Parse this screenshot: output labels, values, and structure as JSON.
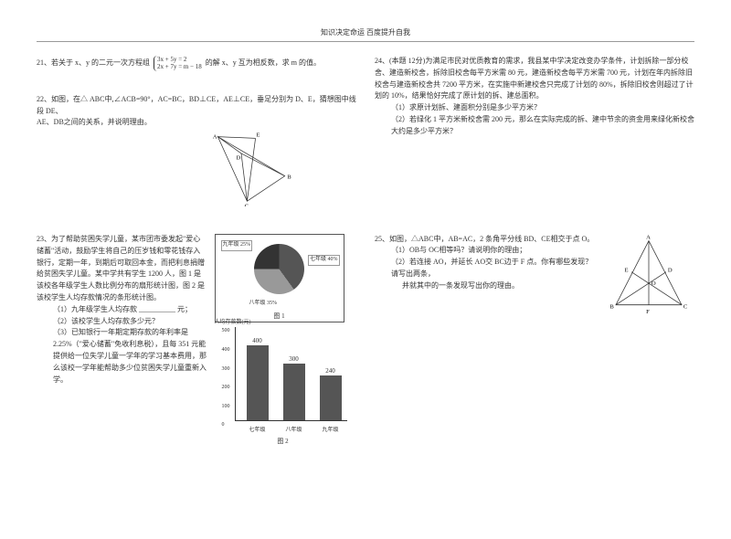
{
  "header": {
    "title": "知识决定命运 百度提升自我"
  },
  "left": {
    "q21": {
      "text_before": "21、若关于 x、y 的二元一次方程组",
      "eq_top": "3x + 5y = 2",
      "eq_bot": "2x + 7y = m − 18",
      "text_after": " 的解 x、y 互为相反数，求 m 的值。"
    },
    "q22": {
      "line1": "22、如图，在△ ABC中,∠ACB=90°，AC=BC，BD⊥CE，AE⊥CE，垂足分别为 D、E，猜想图中线段 DE、",
      "line2": "  AE、DB之间的关系，并说明理由。",
      "labels": {
        "A": "A",
        "B": "B",
        "C": "C",
        "D": "D",
        "E": "E"
      }
    },
    "q23": {
      "p1": "23、为了帮助贫困失学儿童，某市团市委发起\"爱心储蓄\"活动，鼓励学生将自己的压岁钱和零花钱存入银行，定期一年，到期后可取回本金，而把利息捐赠给贫困失学儿童。某中学共有学生 1200 人，图 1 是该校各年级学生人数比例分布的扇形统计图，图 2 是该校学生人均存款情况的条形统计图。",
      "i1": "（1）九年级学生人均存款 __________ 元；",
      "i2": "（2）该校学生人均存款多少元？",
      "i3": "（3）已知银行一年期定期存款的年利率是 2.25%（\"爱心储蓄\"免收利息税），且每 351 元能提供给一位失学儿童一学年的学习基本费用，那么该校一学年能帮助多少位贫困失学儿童重新入学。",
      "pie": {
        "labels": {
          "g7": "七年级 40%",
          "g8": "八年级 35%",
          "g9": "九年级 25%"
        },
        "caption": "图 1"
      },
      "bar": {
        "ytitle": "人均存款数(元)",
        "yticks": [
          "0",
          "100",
          "200",
          "300",
          "400",
          "500"
        ],
        "bars": [
          {
            "label": "七年级",
            "value": 400
          },
          {
            "label": "八年级",
            "value": 300
          },
          {
            "label": "九年级",
            "value": 240
          }
        ],
        "ymax": 500,
        "caption": "图 2"
      }
    }
  },
  "right": {
    "q24": {
      "p1": "24、(本题 12分)为满足市民对优质教育的需求，我县某中学决定改变办学条件，计划拆除一部分校舍、建造新校舍，拆除旧校舍每平方米需 80 元，建造新校舍每平方米需 700 元，计划在年内拆除旧校舍与建造新校舍共 7200 平方米，在实施中新建校舍只完成了计划的 80%，拆除旧校舍则超过了计划的 10%，结果恰好完成了原计划的拆、建总面积。",
      "i1": "（1）求原计划拆、建面积分别是多少平方米？",
      "i2": "（2）若绿化 1 平方米新校舍需  200 元，那么在实际完成的拆、建中节余的资金用来绿化新校舍大约是多少平方米？"
    },
    "q25": {
      "p1": "25、如图，△ABC中，AB=AC，2 条角平分线 BD、CE相交于点 O。",
      "i1": "（1）OB与 OC相等吗？请说明你的理由；",
      "i2a": "（2）若连接 AO，并延长 AO交 BC边于 F 点。你有哪些发现？请写出两条，",
      "i2b": "并就其中的一条发现写出你的理由。",
      "labels": {
        "A": "A",
        "B": "B",
        "C": "C",
        "D": "D",
        "E": "E",
        "F": "F",
        "O": "O"
      }
    }
  }
}
